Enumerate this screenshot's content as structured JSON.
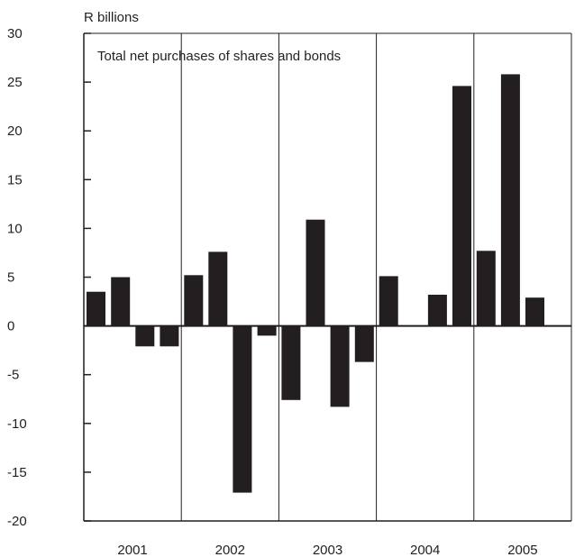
{
  "chart_data": {
    "type": "bar",
    "unit_label": "R billions",
    "title": "Total net purchases of shares and bonds",
    "xlabel": "",
    "ylabel": "",
    "ylim": [
      -20,
      30
    ],
    "y_ticks": [
      "30",
      "25",
      "20",
      "15",
      "10",
      "5",
      "0",
      "-5",
      "-10",
      "-15",
      "-20"
    ],
    "y_tick_values": [
      30,
      25,
      20,
      15,
      10,
      5,
      0,
      -5,
      -10,
      -15,
      -20
    ],
    "grid": false,
    "year_separators": true,
    "bar_color": "#231f20",
    "groups": [
      {
        "label": "2001",
        "values": [
          3.5,
          5.0,
          -2.1,
          -2.1
        ]
      },
      {
        "label": "2002",
        "values": [
          5.2,
          7.6,
          -17.1,
          -1.0
        ]
      },
      {
        "label": "2003",
        "values": [
          -7.6,
          10.9,
          -8.3,
          -3.7
        ]
      },
      {
        "label": "2004",
        "values": [
          5.1,
          0,
          3.2,
          24.6
        ]
      },
      {
        "label": "2005",
        "values": [
          7.7,
          25.8,
          2.9
        ]
      }
    ]
  }
}
